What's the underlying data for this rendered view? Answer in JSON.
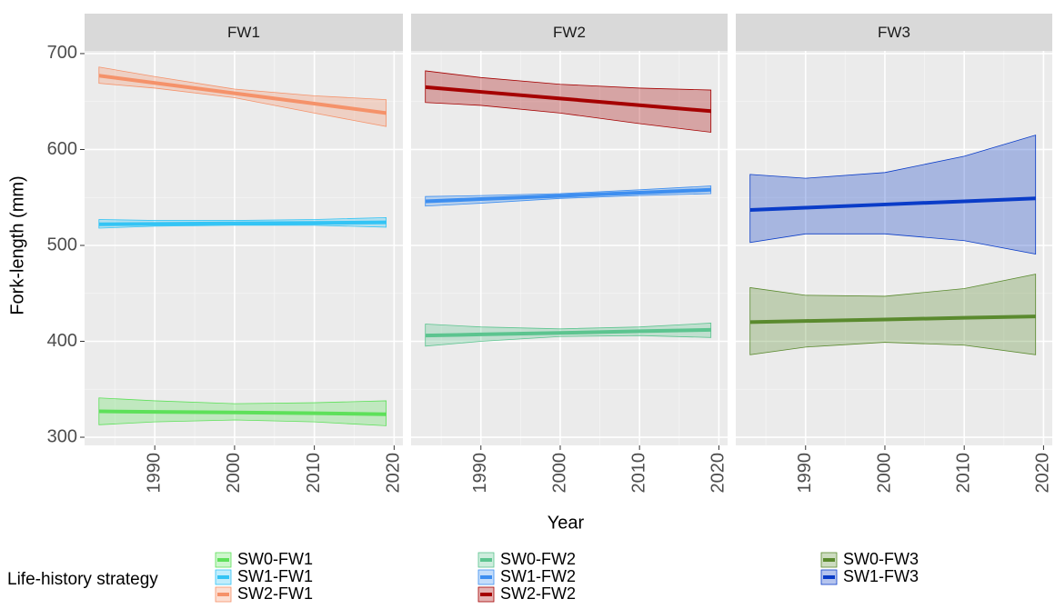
{
  "ylabel": "Fork-length (mm)",
  "xlabel": "Year",
  "legend_title": "Life-history strategy",
  "chart_data": [
    {
      "type": "line",
      "title": "FW1",
      "x": [
        1983,
        1990,
        2000,
        2010,
        2019
      ],
      "xlim": [
        1981.2,
        2021.1
      ],
      "xticks": [
        1990,
        2000,
        2010,
        2020
      ],
      "ylim": [
        291.5,
        702.8
      ],
      "yticks": [
        300,
        400,
        500,
        600,
        700
      ],
      "grid": true,
      "series": [
        {
          "name": "SW0-FW1",
          "color": "#5ee05a",
          "values": [
            327,
            326.5,
            325.8,
            325,
            324
          ],
          "lower": [
            313,
            316,
            318,
            316,
            312
          ],
          "upper": [
            341,
            338,
            335,
            336,
            338
          ]
        },
        {
          "name": "SW1-FW1",
          "color": "#33c4f5",
          "values": [
            522,
            522.4,
            523,
            523.5,
            524
          ],
          "lower": [
            518,
            520,
            521,
            521,
            519
          ],
          "upper": [
            527,
            526,
            526,
            527,
            529
          ]
        },
        {
          "name": "SW2-FW1",
          "color": "#f5926a",
          "values": [
            677,
            669.4,
            658.6,
            647.8,
            638
          ],
          "lower": [
            669,
            664,
            654,
            638,
            624
          ],
          "upper": [
            686,
            676,
            663,
            656,
            652
          ]
        }
      ]
    },
    {
      "type": "line",
      "title": "FW2",
      "x": [
        1983,
        1990,
        2000,
        2010,
        2019
      ],
      "xlim": [
        1981.2,
        2021.1
      ],
      "xticks": [
        1990,
        2000,
        2010,
        2020
      ],
      "ylim": [
        291.5,
        702.8
      ],
      "yticks": [
        300,
        400,
        500,
        600,
        700
      ],
      "grid": true,
      "series": [
        {
          "name": "SW0-FW2",
          "color": "#5cc48f",
          "values": [
            406,
            407.2,
            408.8,
            410.5,
            412
          ],
          "lower": [
            395,
            400,
            405,
            406,
            404
          ],
          "upper": [
            418,
            415,
            413,
            415,
            419
          ]
        },
        {
          "name": "SW1-FW2",
          "color": "#3d8ef0",
          "values": [
            546,
            548.3,
            551.7,
            555,
            558
          ],
          "lower": [
            541,
            544,
            549,
            552,
            554
          ],
          "upper": [
            551,
            552,
            554,
            558,
            562
          ]
        },
        {
          "name": "SW2-FW2",
          "color": "#a50000",
          "values": [
            665,
            660.1,
            653.2,
            646.2,
            640
          ],
          "lower": [
            649,
            646,
            638,
            627,
            618
          ],
          "upper": [
            682,
            675,
            668,
            664,
            662
          ]
        }
      ]
    },
    {
      "type": "line",
      "title": "FW3",
      "x": [
        1983,
        1990,
        2000,
        2010,
        2019
      ],
      "xlim": [
        1981.2,
        2021.1
      ],
      "xticks": [
        1990,
        2000,
        2010,
        2020
      ],
      "ylim": [
        291.5,
        702.8
      ],
      "yticks": [
        300,
        400,
        500,
        600,
        700
      ],
      "grid": true,
      "series": [
        {
          "name": "SW0-FW3",
          "color": "#5a8a2e",
          "values": [
            420,
            421.2,
            422.8,
            424.5,
            426
          ],
          "lower": [
            386,
            394,
            399,
            396,
            386
          ],
          "upper": [
            456,
            448,
            447,
            455,
            470
          ]
        },
        {
          "name": "SW1-FW3",
          "color": "#0a3cc8",
          "values": [
            537,
            539.3,
            542.7,
            546,
            549
          ],
          "lower": [
            503,
            512,
            512,
            505,
            491
          ],
          "upper": [
            574,
            570,
            576,
            593,
            615
          ]
        }
      ]
    }
  ]
}
